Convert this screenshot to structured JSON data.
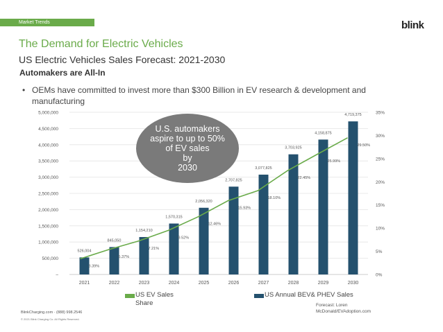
{
  "header": {
    "section_tag": "Market Trends",
    "logo_text": "blink"
  },
  "title": "The Demand for Electric Vehicles",
  "subtitle": "US Electric Vehicles Sales Forecast: 2021-2030",
  "heading": "Automakers are All-In",
  "bullets": [
    "OEMs have committed to invest more than $300 Billion in EV research & development and manufacturing"
  ],
  "callout": {
    "lines": [
      "U.S. automakers",
      "aspire to up to 50%",
      "of EV sales",
      "by",
      "2030"
    ],
    "color": "#7a7a7a"
  },
  "chart_data": {
    "type": "bar+line",
    "categories": [
      "2021",
      "2022",
      "2023",
      "2024",
      "2025",
      "2026",
      "2027",
      "2028",
      "2029",
      "2030"
    ],
    "series": [
      {
        "name": "US Annual BEV& PHEV Sales",
        "type": "bar",
        "axis": "left",
        "color": "#24516e",
        "values": [
          526004,
          845050,
          1154210,
          1570315,
          2056320,
          2707825,
          3077825,
          3703925,
          4158875,
          4719375
        ],
        "labels": [
          "526,004",
          "845,050",
          "1,154,210",
          "1,570,315",
          "2,056,320",
          "2,707,825",
          "3,077,825",
          "3,703,925",
          "4,158,875",
          "4,719,375"
        ]
      },
      {
        "name": "US EV Sales Share",
        "type": "line",
        "axis": "right",
        "color": "#6aab4a",
        "values": [
          3.39,
          5.37,
          7.21,
          9.52,
          12.46,
          15.93,
          18.1,
          22.45,
          25.99,
          29.5
        ],
        "labels": [
          "3.39%",
          "5.37%",
          "7.21%",
          "9.52%",
          "12.46%",
          "15.93%",
          "18.10%",
          "22.45%",
          "25.99%",
          "29.50%"
        ]
      }
    ],
    "left_axis": {
      "ylim": [
        0,
        5000000
      ],
      "ticks": [
        "–",
        "500,000",
        "1,000,000",
        "1,500,000",
        "2,000,000",
        "2,500,000",
        "3,000,000",
        "3,500,000",
        "4,000,000",
        "4,500,000",
        "5,000,000"
      ]
    },
    "right_axis": {
      "ylim": [
        0,
        35
      ],
      "ticks": [
        "0%",
        "5%",
        "10%",
        "15%",
        "20%",
        "25%",
        "30%",
        "35%"
      ]
    },
    "grid": true,
    "legend_position": "bottom"
  },
  "legend": [
    {
      "label": "US EV Sales Share",
      "color": "#6aab4a"
    },
    {
      "label": "US Annual BEV& PHEV Sales",
      "color": "#24516e"
    }
  ],
  "source": "Forecast: Loren McDonald/EVAdoption.com",
  "footer": {
    "contact": "BlinkCharging.com · (888) 998.2546",
    "copyright": "© 2021 Blink Charging Co. All Rights Reserved."
  }
}
